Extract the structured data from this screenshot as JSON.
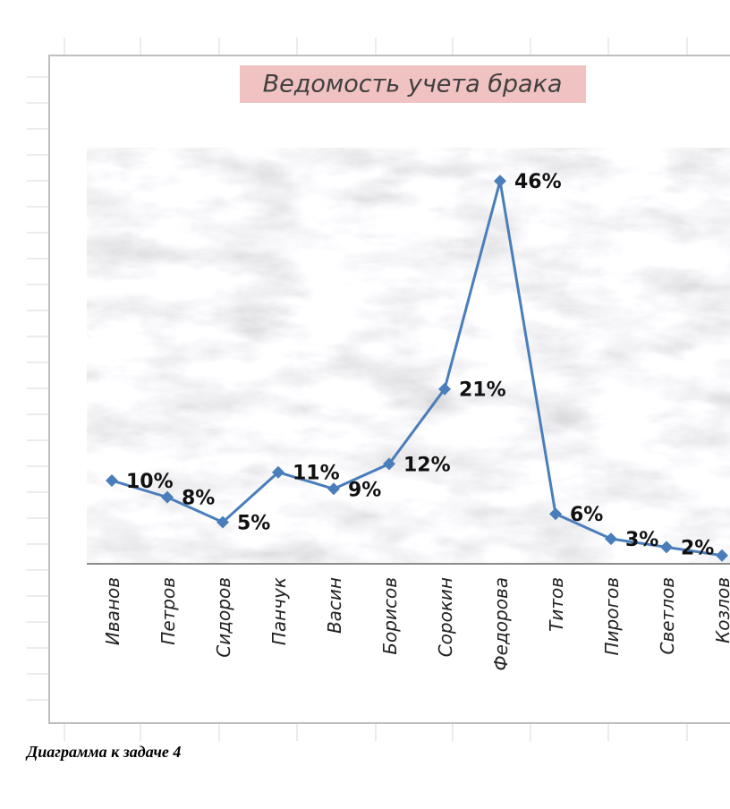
{
  "chart_data": {
    "type": "line",
    "title": "Ведомость учета брака",
    "categories": [
      "Иванов",
      "Петров",
      "Сидоров",
      "Панчук",
      "Васин",
      "Борисов",
      "Сорокин",
      "Федорова",
      "Титов",
      "Пирогов",
      "Светлов",
      "Козлов"
    ],
    "series": [
      {
        "color": "#4a7ebb",
        "values": [
          10,
          8,
          5,
          11,
          9,
          12,
          21,
          46,
          6,
          3,
          2,
          1
        ],
        "value_labels": [
          "10%",
          "8%",
          "5%",
          "11%",
          "9%",
          "12%",
          "21%",
          "46%",
          "6%",
          "3%",
          "2%",
          null
        ]
      }
    ],
    "ylim": [
      0,
      50
    ]
  },
  "caption": "Диаграмма к задаче 4"
}
